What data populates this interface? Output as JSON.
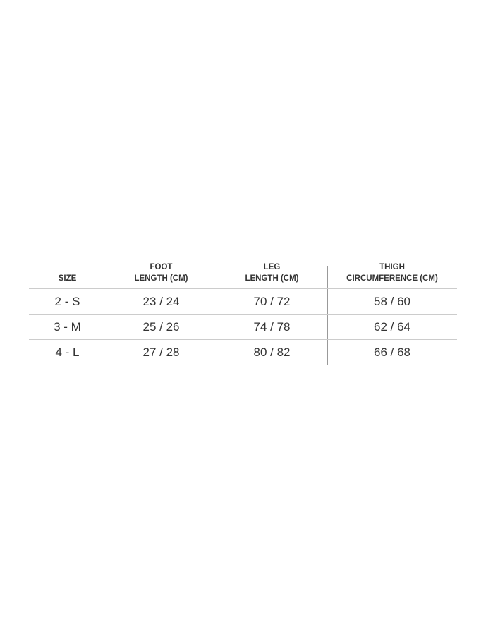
{
  "table": {
    "headers": [
      [
        "SIZE"
      ],
      [
        "FOOT",
        "LENGTH (CM)"
      ],
      [
        "LEG",
        "LENGTH (CM)"
      ],
      [
        "THIGH",
        "CIRCUMFERENCE (CM)"
      ]
    ],
    "rows": [
      [
        "2 - S",
        "23 / 24",
        "70 / 72",
        "58 / 60"
      ],
      [
        "3 - M",
        "25 / 26",
        "74 / 78",
        "62 / 64"
      ],
      [
        "4 - L",
        "27 / 28",
        "80 / 82",
        "66 / 68"
      ]
    ]
  }
}
